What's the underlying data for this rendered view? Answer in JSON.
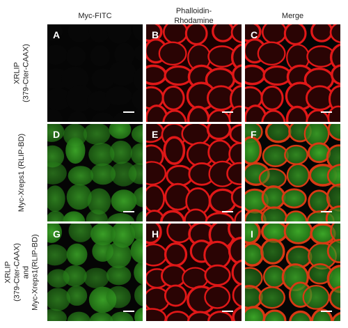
{
  "columns": [
    {
      "lines": [
        "Myc-FITC"
      ]
    },
    {
      "lines": [
        "Phalloidin-",
        "Rhodamine"
      ]
    },
    {
      "lines": [
        "Merge"
      ]
    }
  ],
  "rows": [
    {
      "lines": [
        "XRLIP",
        "(379-Cter-CAAX)"
      ]
    },
    {
      "lines": [
        "Myc-Xreps1 (RLIP-BD)"
      ]
    },
    {
      "lines": [
        "XRLIP",
        "(379-Cter-CAAX)",
        "and",
        "Myc-Xreps1(RLIP-BD)"
      ]
    }
  ],
  "panels": [
    "A",
    "B",
    "C",
    "D",
    "E",
    "F",
    "G",
    "H",
    "I"
  ]
}
